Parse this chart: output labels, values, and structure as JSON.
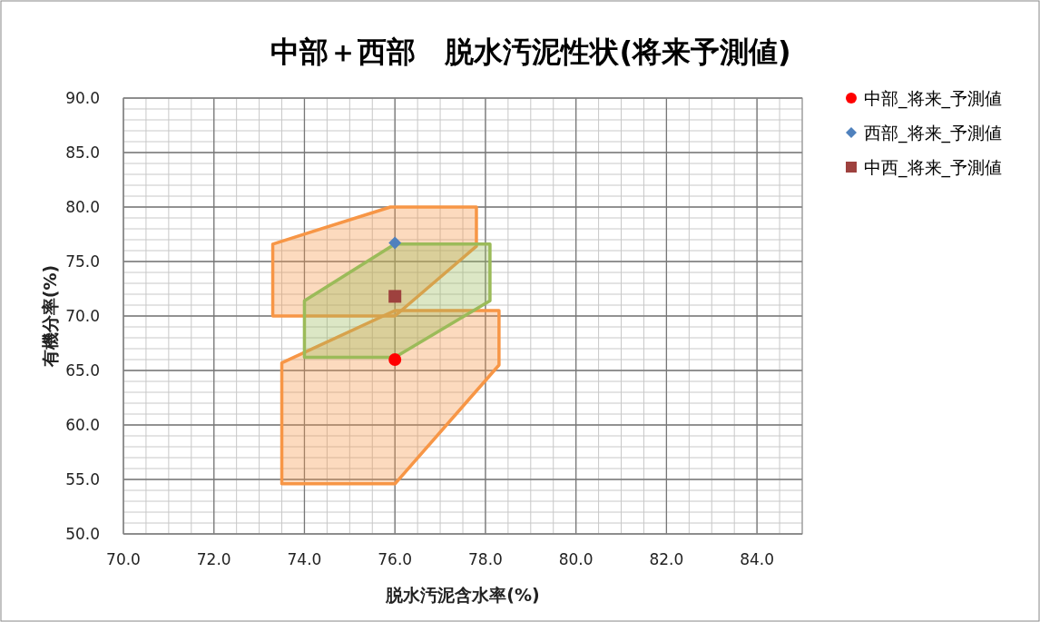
{
  "chart_data": {
    "type": "scatter",
    "title": "中部＋西部　脱水汚泥性状(将来予測値)",
    "xlabel": "脱水汚泥含水率(%)",
    "ylabel": "有機分率(%)",
    "xlim": [
      70,
      85
    ],
    "xticks": [
      {
        "value": 70,
        "label": "70.0"
      },
      {
        "value": 72,
        "label": "72.0"
      },
      {
        "value": 74,
        "label": "74.0"
      },
      {
        "value": 76,
        "label": "76.0"
      },
      {
        "value": 78,
        "label": "78.0"
      },
      {
        "value": 80,
        "label": "80.0"
      },
      {
        "value": 82,
        "label": "82.0"
      },
      {
        "value": 84,
        "label": "84.0"
      }
    ],
    "ylim": [
      50,
      90
    ],
    "yticks": [
      {
        "value": 50,
        "label": "50.0"
      },
      {
        "value": 55,
        "label": "55.0"
      },
      {
        "value": 60,
        "label": "60.0"
      },
      {
        "value": 65,
        "label": "65.0"
      },
      {
        "value": 70,
        "label": "70.0"
      },
      {
        "value": 75,
        "label": "75.0"
      },
      {
        "value": 80,
        "label": "80.0"
      },
      {
        "value": 85,
        "label": "85.0"
      },
      {
        "value": 90,
        "label": "90.0"
      }
    ],
    "grid": true,
    "legend": "right",
    "series": [
      {
        "type": "area",
        "color": "#f79646",
        "x": [
          73.3,
          75.9,
          77.8,
          77.8,
          76.0,
          73.3
        ],
        "values": [
          76.6,
          80.0,
          80.0,
          76.4,
          70.0,
          70.0
        ]
      },
      {
        "type": "area",
        "color": "#f79646",
        "x": [
          73.5,
          76.0,
          78.3,
          78.3,
          76.0,
          73.5
        ],
        "values": [
          65.7,
          70.5,
          70.5,
          65.5,
          54.6,
          54.6
        ]
      },
      {
        "type": "area",
        "color": "#9bbb59",
        "x": [
          74.0,
          76.0,
          78.1,
          78.1,
          76.0,
          74.0
        ],
        "values": [
          71.4,
          76.6,
          76.6,
          71.4,
          66.2,
          66.2
        ]
      },
      {
        "name": "中部_将来_予測値",
        "color": "#ff0000",
        "marker": "circle",
        "x": [
          76.0
        ],
        "values": [
          66.0
        ]
      },
      {
        "name": "西部_将来_予測値",
        "color": "#4f81bd",
        "marker": "diamond",
        "x": [
          76.0
        ],
        "values": [
          76.7
        ]
      },
      {
        "name": "中西_将来_予測値",
        "color": "#9e413e",
        "marker": "square",
        "x": [
          76.0
        ],
        "values": [
          71.8
        ]
      }
    ]
  }
}
